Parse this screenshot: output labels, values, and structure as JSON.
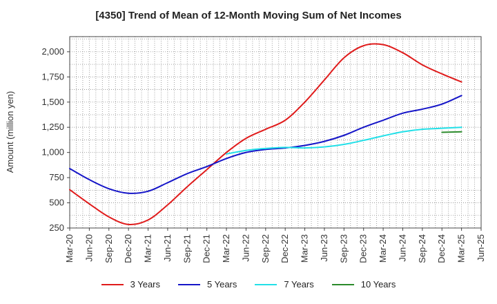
{
  "chart_data": {
    "type": "line",
    "title": "[4350]  Trend of Mean of 12-Month Moving Sum of Net Incomes",
    "xlabel": "",
    "ylabel": "Amount (million yen)",
    "ylim": [
      250,
      2150
    ],
    "yticks": [
      250,
      500,
      750,
      1000,
      1250,
      1500,
      1750,
      2000
    ],
    "ytick_labels": [
      "250",
      "500",
      "750",
      "1,000",
      "1,250",
      "1,500",
      "1,750",
      "2,000"
    ],
    "x_tick_labels": [
      "Mar-20",
      "Jun-20",
      "Sep-20",
      "Dec-20",
      "Mar-21",
      "Jun-21",
      "Sep-21",
      "Dec-21",
      "Mar-22",
      "Jun-22",
      "Sep-22",
      "Dec-22",
      "Mar-23",
      "Jun-23",
      "Sep-23",
      "Dec-23",
      "Mar-24",
      "Jun-24",
      "Sep-24",
      "Dec-24",
      "Mar-25",
      "Jun-25"
    ],
    "grid": true,
    "legend_position": "bottom",
    "series": [
      {
        "name": "3 Years",
        "color": "#e01b1b",
        "x": [
          "Mar-20",
          "Jun-20",
          "Sep-20",
          "Dec-20",
          "Mar-21",
          "Jun-21",
          "Sep-21",
          "Dec-21",
          "Mar-22",
          "Jun-22",
          "Sep-22",
          "Dec-22",
          "Mar-23",
          "Jun-23",
          "Sep-23",
          "Dec-23",
          "Mar-24",
          "Jun-24",
          "Sep-24",
          "Dec-24",
          "Mar-25"
        ],
        "values": [
          630,
          490,
          360,
          285,
          330,
          480,
          660,
          830,
          1000,
          1140,
          1230,
          1320,
          1500,
          1720,
          1940,
          2060,
          2070,
          1990,
          1870,
          1780,
          1700
        ]
      },
      {
        "name": "5 Years",
        "color": "#1515c8",
        "x": [
          "Mar-20",
          "Jun-20",
          "Sep-20",
          "Dec-20",
          "Mar-21",
          "Jun-21",
          "Sep-21",
          "Dec-21",
          "Mar-22",
          "Jun-22",
          "Sep-22",
          "Dec-22",
          "Mar-23",
          "Jun-23",
          "Sep-23",
          "Dec-23",
          "Mar-24",
          "Jun-24",
          "Sep-24",
          "Dec-24",
          "Mar-25"
        ],
        "values": [
          840,
          730,
          640,
          595,
          615,
          700,
          790,
          860,
          940,
          1000,
          1030,
          1045,
          1070,
          1110,
          1170,
          1250,
          1320,
          1390,
          1430,
          1480,
          1565
        ]
      },
      {
        "name": "7 Years",
        "color": "#22e0e8",
        "x": [
          "Mar-22",
          "Jun-22",
          "Sep-22",
          "Dec-22",
          "Mar-23",
          "Jun-23",
          "Sep-23",
          "Dec-23",
          "Mar-24",
          "Jun-24",
          "Sep-24",
          "Dec-24",
          "Mar-25"
        ],
        "values": [
          985,
          1020,
          1040,
          1050,
          1045,
          1055,
          1080,
          1120,
          1165,
          1205,
          1230,
          1240,
          1250
        ]
      },
      {
        "name": "10 Years",
        "color": "#2a8a2a",
        "x": [
          "Dec-24",
          "Mar-25"
        ],
        "values": [
          1200,
          1205
        ]
      }
    ]
  }
}
